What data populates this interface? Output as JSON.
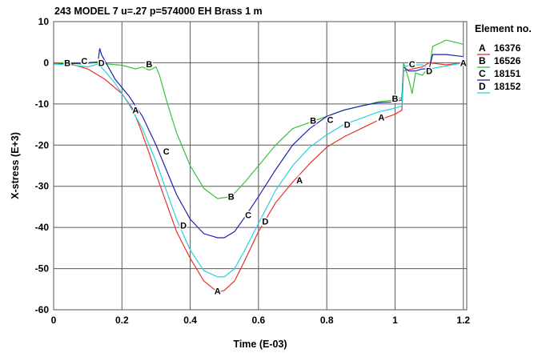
{
  "chart_data": {
    "type": "line",
    "title": "243 MODEL 7 u=.27 p=574000 EH Brass 1 m",
    "xlabel": "Time (E-03)",
    "ylabel": "X-stress (E+3)",
    "xlim": [
      0,
      1.21
    ],
    "ylim": [
      -60,
      10
    ],
    "xticks": [
      0,
      0.2,
      0.4,
      0.6,
      0.8,
      1,
      1.2
    ],
    "xtick_labels": [
      "0",
      "0.2",
      "0.4",
      "0.6",
      "0.8",
      "1",
      "1.2"
    ],
    "yticks": [
      10,
      0,
      -10,
      -20,
      -30,
      -40,
      -50,
      -60
    ],
    "ytick_labels": [
      "10",
      "0",
      "-10",
      "-20",
      "-30",
      "-40",
      "-50",
      "-60"
    ],
    "grid": true,
    "legend_title": "Element no.",
    "legend_position": "right",
    "series": [
      {
        "name": "16376",
        "marker": "A",
        "color": "#e8312a",
        "points": [
          [
            0,
            0
          ],
          [
            0.05,
            -0.3
          ],
          [
            0.1,
            -1.5
          ],
          [
            0.15,
            -4
          ],
          [
            0.2,
            -7.5
          ],
          [
            0.23,
            -11
          ],
          [
            0.25,
            -15
          ],
          [
            0.28,
            -22
          ],
          [
            0.3,
            -27
          ],
          [
            0.33,
            -34
          ],
          [
            0.36,
            -41
          ],
          [
            0.4,
            -47.5
          ],
          [
            0.44,
            -53
          ],
          [
            0.48,
            -55.7
          ],
          [
            0.5,
            -55.3
          ],
          [
            0.53,
            -53
          ],
          [
            0.56,
            -48
          ],
          [
            0.6,
            -41
          ],
          [
            0.65,
            -34
          ],
          [
            0.7,
            -29
          ],
          [
            0.75,
            -24.5
          ],
          [
            0.8,
            -20.5
          ],
          [
            0.85,
            -18
          ],
          [
            0.9,
            -16
          ],
          [
            0.95,
            -14
          ],
          [
            1.0,
            -12.5
          ],
          [
            1.02,
            -11.5
          ],
          [
            1.025,
            -2
          ],
          [
            1.05,
            -1.5
          ],
          [
            1.08,
            -1
          ],
          [
            1.1,
            0
          ],
          [
            1.15,
            -0.5
          ],
          [
            1.2,
            0
          ]
        ],
        "marker_points": [
          [
            0.24,
            -11.5
          ],
          [
            0.48,
            -55.4
          ],
          [
            0.72,
            -28.5
          ],
          [
            0.96,
            -13.2
          ],
          [
            1.2,
            0
          ]
        ]
      },
      {
        "name": "16526",
        "marker": "B",
        "color": "#38c238",
        "points": [
          [
            0,
            -0.2
          ],
          [
            0.04,
            0
          ],
          [
            0.08,
            -0.3
          ],
          [
            0.12,
            0
          ],
          [
            0.16,
            -0.3
          ],
          [
            0.2,
            -0.6
          ],
          [
            0.24,
            -1.5
          ],
          [
            0.26,
            -1
          ],
          [
            0.28,
            -1.8
          ],
          [
            0.3,
            -1
          ],
          [
            0.31,
            -3
          ],
          [
            0.33,
            -9
          ],
          [
            0.36,
            -17
          ],
          [
            0.4,
            -25
          ],
          [
            0.44,
            -30.5
          ],
          [
            0.48,
            -33
          ],
          [
            0.52,
            -32.5
          ],
          [
            0.56,
            -29
          ],
          [
            0.6,
            -25
          ],
          [
            0.65,
            -20
          ],
          [
            0.7,
            -16
          ],
          [
            0.75,
            -14.5
          ],
          [
            0.8,
            -13
          ],
          [
            0.85,
            -11.5
          ],
          [
            0.9,
            -10.5
          ],
          [
            0.95,
            -9.5
          ],
          [
            1.0,
            -9
          ],
          [
            1.02,
            -8.5
          ],
          [
            1.025,
            0
          ],
          [
            1.04,
            -4
          ],
          [
            1.05,
            -7.5
          ],
          [
            1.06,
            -2.5
          ],
          [
            1.08,
            -3
          ],
          [
            1.09,
            -2
          ],
          [
            1.1,
            -2
          ],
          [
            1.11,
            4
          ],
          [
            1.15,
            5.5
          ],
          [
            1.2,
            4.5
          ]
        ],
        "marker_points": [
          [
            0.04,
            0
          ],
          [
            0.28,
            -0.3
          ],
          [
            0.52,
            -32.5
          ],
          [
            0.76,
            -14
          ],
          [
            1.0,
            -8.7
          ]
        ]
      },
      {
        "name": "18151",
        "marker": "C",
        "color": "#2020b0",
        "points": [
          [
            0,
            -0.3
          ],
          [
            0.05,
            -0.2
          ],
          [
            0.1,
            0
          ],
          [
            0.13,
            0.2
          ],
          [
            0.135,
            3.5
          ],
          [
            0.14,
            2
          ],
          [
            0.15,
            0.5
          ],
          [
            0.18,
            -4
          ],
          [
            0.22,
            -8
          ],
          [
            0.26,
            -13
          ],
          [
            0.3,
            -20
          ],
          [
            0.33,
            -26
          ],
          [
            0.36,
            -32
          ],
          [
            0.4,
            -38
          ],
          [
            0.44,
            -41.5
          ],
          [
            0.48,
            -42.5
          ],
          [
            0.5,
            -42.5
          ],
          [
            0.53,
            -41
          ],
          [
            0.56,
            -37.5
          ],
          [
            0.6,
            -32.5
          ],
          [
            0.65,
            -26
          ],
          [
            0.7,
            -20
          ],
          [
            0.75,
            -16
          ],
          [
            0.8,
            -13
          ],
          [
            0.85,
            -11.5
          ],
          [
            0.9,
            -10.5
          ],
          [
            0.95,
            -9.7
          ],
          [
            1.0,
            -9.5
          ],
          [
            1.02,
            -9
          ],
          [
            1.025,
            -1
          ],
          [
            1.04,
            -2
          ],
          [
            1.06,
            -2
          ],
          [
            1.08,
            -1.5
          ],
          [
            1.1,
            -1.5
          ],
          [
            1.11,
            2
          ],
          [
            1.15,
            2
          ],
          [
            1.2,
            1.5
          ]
        ],
        "marker_points": [
          [
            0.09,
            0.5
          ],
          [
            0.33,
            -21.5
          ],
          [
            0.57,
            -37
          ],
          [
            0.81,
            -13.8
          ],
          [
            1.05,
            -0.3
          ]
        ]
      },
      {
        "name": "18152",
        "marker": "D",
        "color": "#28d0e0",
        "points": [
          [
            0,
            -0.3
          ],
          [
            0.05,
            -0.5
          ],
          [
            0.1,
            -1
          ],
          [
            0.13,
            -0.3
          ],
          [
            0.15,
            -2
          ],
          [
            0.18,
            -5
          ],
          [
            0.22,
            -10
          ],
          [
            0.26,
            -16
          ],
          [
            0.3,
            -24
          ],
          [
            0.33,
            -31
          ],
          [
            0.36,
            -38
          ],
          [
            0.4,
            -45.5
          ],
          [
            0.44,
            -50.5
          ],
          [
            0.48,
            -52
          ],
          [
            0.5,
            -52
          ],
          [
            0.53,
            -50
          ],
          [
            0.56,
            -45.5
          ],
          [
            0.6,
            -39
          ],
          [
            0.65,
            -31
          ],
          [
            0.7,
            -25
          ],
          [
            0.75,
            -20.5
          ],
          [
            0.8,
            -17.5
          ],
          [
            0.85,
            -15
          ],
          [
            0.9,
            -13.5
          ],
          [
            0.95,
            -12
          ],
          [
            1.0,
            -11
          ],
          [
            1.02,
            -10.5
          ],
          [
            1.025,
            -1
          ],
          [
            1.05,
            -0.5
          ],
          [
            1.08,
            -0.5
          ],
          [
            1.1,
            -1.5
          ],
          [
            1.15,
            -0.8
          ],
          [
            1.2,
            0
          ]
        ],
        "marker_points": [
          [
            0.14,
            0
          ],
          [
            0.38,
            -39.5
          ],
          [
            0.62,
            -38.5
          ],
          [
            0.86,
            -15
          ],
          [
            1.1,
            -2
          ]
        ]
      }
    ]
  }
}
